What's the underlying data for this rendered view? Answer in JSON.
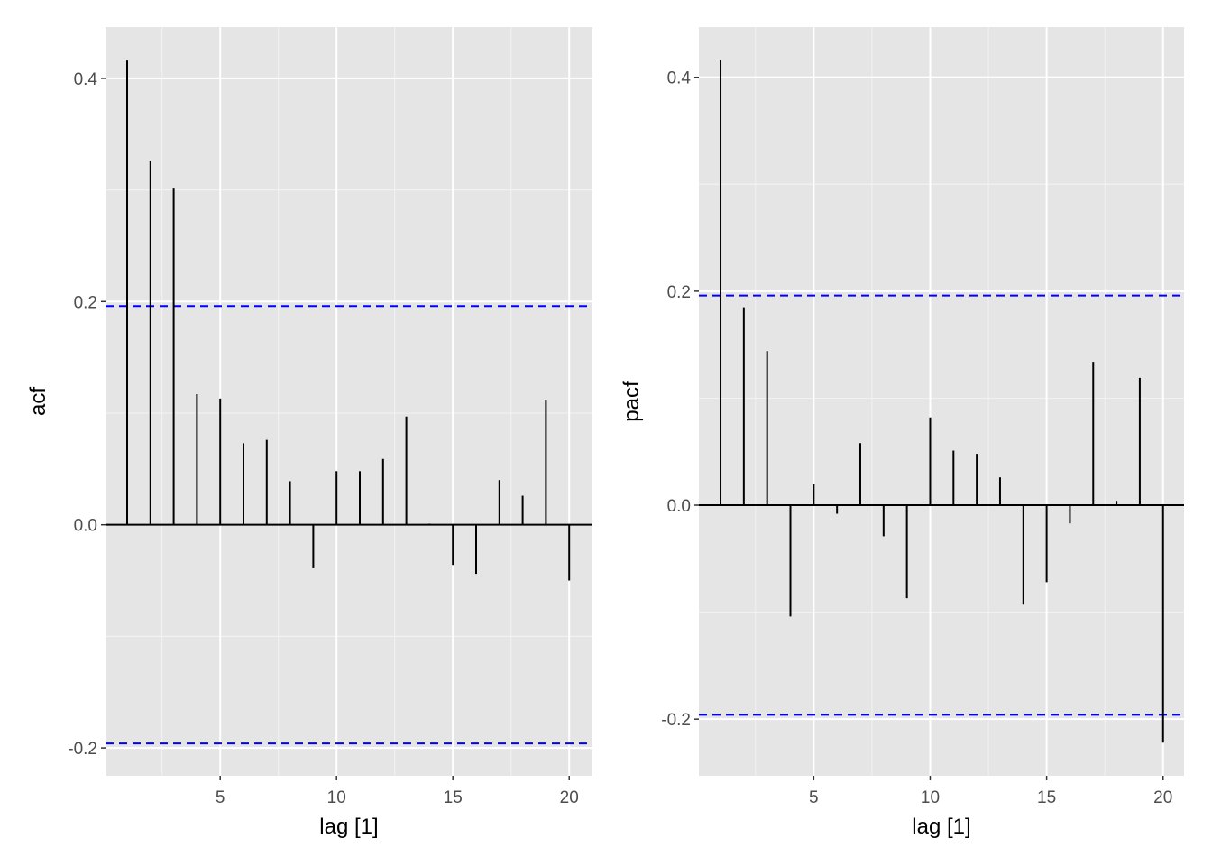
{
  "chart_data": [
    {
      "type": "bar",
      "subtype": "correlogram",
      "title": "",
      "xlabel": "lag [1]",
      "ylabel": "acf",
      "xlim": [
        0.07,
        21.0
      ],
      "ylim": [
        -0.225,
        0.446
      ],
      "xticks": [
        5,
        10,
        15,
        20
      ],
      "yticks": [
        -0.2,
        0.0,
        0.2,
        0.4
      ],
      "ytick_labels": [
        "-0.2",
        "0.0",
        "0.2",
        "0.4"
      ],
      "grid": true,
      "lags": [
        1,
        2,
        3,
        4,
        5,
        6,
        7,
        8,
        9,
        10,
        11,
        12,
        13,
        14,
        15,
        16,
        17,
        18,
        19,
        20
      ],
      "values": [
        0.416,
        0.326,
        0.302,
        0.117,
        0.113,
        0.073,
        0.076,
        0.039,
        -0.039,
        0.048,
        0.048,
        0.059,
        0.097,
        0.001,
        -0.036,
        -0.044,
        0.04,
        0.026,
        0.112,
        -0.05
      ],
      "ci": 0.196,
      "ci_color": "#0000ff"
    },
    {
      "type": "bar",
      "subtype": "correlogram",
      "title": "",
      "xlabel": "lag [1]",
      "ylabel": "pacf",
      "xlim": [
        0.07,
        20.9
      ],
      "ylim": [
        -0.253,
        0.447
      ],
      "xticks": [
        5,
        10,
        15,
        20
      ],
      "yticks": [
        -0.2,
        0.0,
        0.2,
        0.4
      ],
      "ytick_labels": [
        "-0.2",
        "0.0",
        "0.2",
        "0.4"
      ],
      "grid": true,
      "lags": [
        1,
        2,
        3,
        4,
        5,
        6,
        7,
        8,
        9,
        10,
        11,
        12,
        13,
        14,
        15,
        16,
        17,
        18,
        19,
        20
      ],
      "values": [
        0.416,
        0.185,
        0.144,
        -0.104,
        0.02,
        -0.008,
        0.058,
        -0.029,
        -0.087,
        0.082,
        0.051,
        0.048,
        0.026,
        -0.093,
        -0.072,
        -0.017,
        0.134,
        0.004,
        0.119,
        -0.222
      ],
      "ci": 0.196,
      "ci_color": "#0000ff"
    }
  ]
}
